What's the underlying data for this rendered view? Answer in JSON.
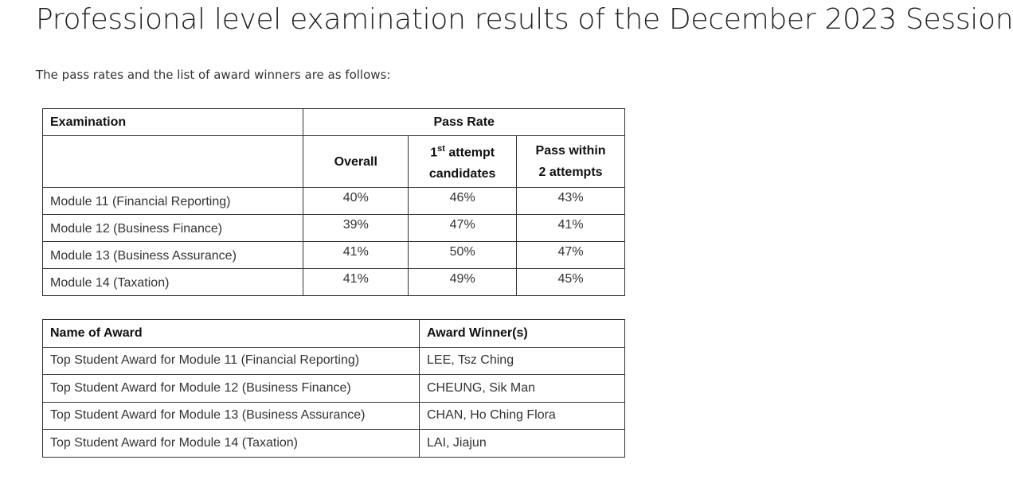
{
  "page": {
    "title": "Professional level examination results of the December 2023 Session",
    "intro": "The pass rates and the list of award winners are as follows:"
  },
  "results_table": {
    "header": {
      "examination": "Examination",
      "pass_rate": "Pass Rate",
      "overall": "Overall",
      "first_attempt_num": "1",
      "first_attempt_sup": "st",
      "first_attempt_rest": " attempt",
      "first_attempt_line2": "candidates",
      "within_two_line1": "Pass within",
      "within_two_line2": "2 attempts"
    },
    "rows": [
      {
        "module": "Module 11 (Financial Reporting)",
        "overall": "40%",
        "first_attempt": "46%",
        "within_two": "43%"
      },
      {
        "module": "Module 12 (Business Finance)",
        "overall": "39%",
        "first_attempt": "47%",
        "within_two": "41%"
      },
      {
        "module": "Module 13 (Business Assurance)",
        "overall": "41%",
        "first_attempt": "50%",
        "within_two": "47%"
      },
      {
        "module": "Module 14 (Taxation)",
        "overall": "41%",
        "first_attempt": "49%",
        "within_two": "45%"
      }
    ]
  },
  "award_table": {
    "header": {
      "award": "Name of Award",
      "winner": "Award Winner(s)"
    },
    "rows": [
      {
        "award": "Top Student Award for Module 11 (Financial Reporting)",
        "winner": "LEE, Tsz Ching"
      },
      {
        "award": "Top Student Award for Module 12 (Business Finance)",
        "winner": "CHEUNG, Sik Man"
      },
      {
        "award": "Top Student Award for Module 13 (Business Assurance)",
        "winner": "CHAN, Ho Ching Flora"
      },
      {
        "award": "Top Student Award for Module 14 (Taxation)",
        "winner": "LAI, Jiajun"
      }
    ]
  }
}
